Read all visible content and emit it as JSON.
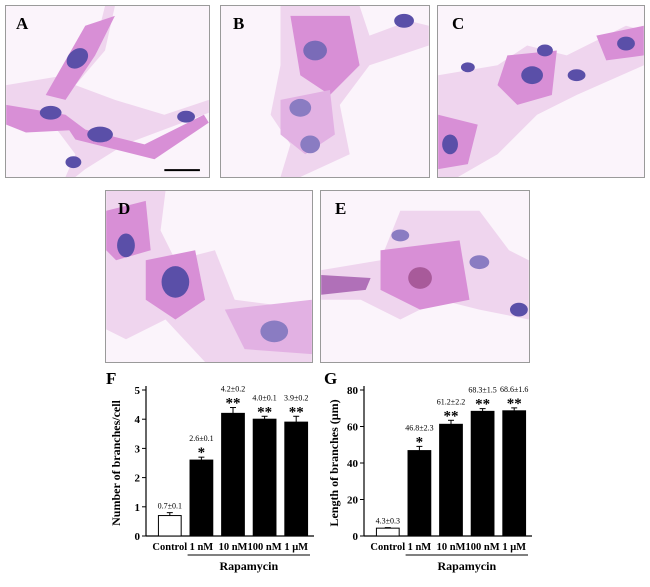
{
  "figure": {
    "panels": [
      {
        "label": "A"
      },
      {
        "label": "B"
      },
      {
        "label": "C"
      },
      {
        "label": "D"
      },
      {
        "label": "E"
      }
    ],
    "colors": {
      "cytoplasm": "#d88fd6",
      "cytoplasm_light": "#efd5ee",
      "nucleus": "#5a4fa8",
      "background": "#fbf4fb",
      "bar_filled": "#000000",
      "bar_control": "#ffffff"
    }
  },
  "chart_data": [
    {
      "type": "bar",
      "panel_label": "F",
      "categories": [
        "Control",
        "1 nM",
        "10 nM",
        "100 nM",
        "1 μM"
      ],
      "values": [
        0.7,
        2.6,
        4.2,
        4.0,
        3.9
      ],
      "errors": [
        0.1,
        0.1,
        0.2,
        0.1,
        0.2
      ],
      "value_labels": [
        "0.7±0.1",
        "2.6±0.1",
        "4.2±0.2",
        "4.0±0.1",
        "3.9±0.2"
      ],
      "significance": [
        "",
        "*",
        "**",
        "**",
        "**"
      ],
      "bar_colors": [
        "#ffffff",
        "#000000",
        "#000000",
        "#000000",
        "#000000"
      ],
      "ylabel": "Number of branches/cell",
      "xlabel": "",
      "group_label": "Rapamycin",
      "ylim": [
        0,
        5
      ],
      "yticks": [
        0,
        1,
        2,
        3,
        4,
        5
      ],
      "grid": false
    },
    {
      "type": "bar",
      "panel_label": "G",
      "categories": [
        "Control",
        "1 nM",
        "10 nM",
        "100 nM",
        "1 μM"
      ],
      "values": [
        4.3,
        46.8,
        61.2,
        68.3,
        68.6
      ],
      "errors": [
        0.3,
        2.3,
        2.2,
        1.5,
        1.6
      ],
      "value_labels": [
        "4.3±0.3",
        "46.8±2.3",
        "61.2±2.2",
        "68.3±1.5",
        "68.6±1.6"
      ],
      "significance": [
        "",
        "*",
        "**",
        "**",
        "**"
      ],
      "bar_colors": [
        "#ffffff",
        "#000000",
        "#000000",
        "#000000",
        "#000000"
      ],
      "ylabel": "Length of branches (μm)",
      "xlabel": "",
      "group_label": "Rapamycin",
      "ylim": [
        0,
        80
      ],
      "yticks": [
        0,
        20,
        40,
        60,
        80
      ],
      "grid": false
    }
  ]
}
